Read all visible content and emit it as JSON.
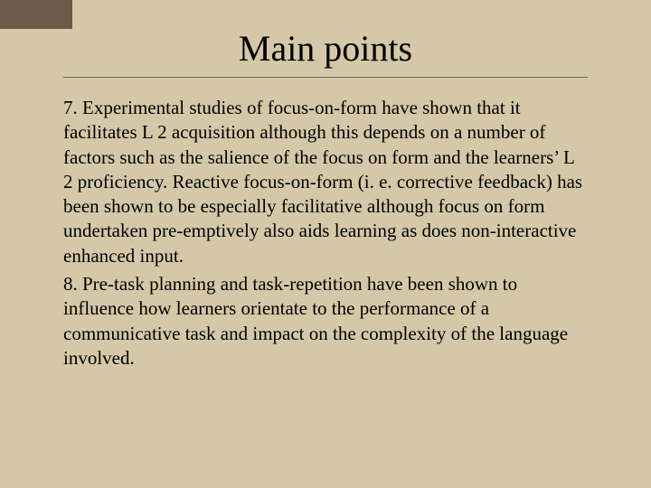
{
  "slide": {
    "title": "Main points",
    "accent_color": "#6a5a4a",
    "background_color": "#d4c8a8",
    "text_color": "#000000",
    "title_fontsize": 40,
    "body_fontsize": 21,
    "points": [
      "7. Experimental studies of focus-on-form have shown that it facilitates L 2 acquisition although this depends on a number of factors such as the salience of the focus on form and the learners’ L 2 proficiency. Reactive focus-on-form (i. e. corrective feedback) has been shown to be especially facilitative although focus on form undertaken pre-emptively also aids learning as does non-interactive enhanced input.",
      "8. Pre-task planning and task-repetition have been shown to influence how learners orientate to the performance of a communicative task and impact on the complexity of the language involved."
    ]
  }
}
